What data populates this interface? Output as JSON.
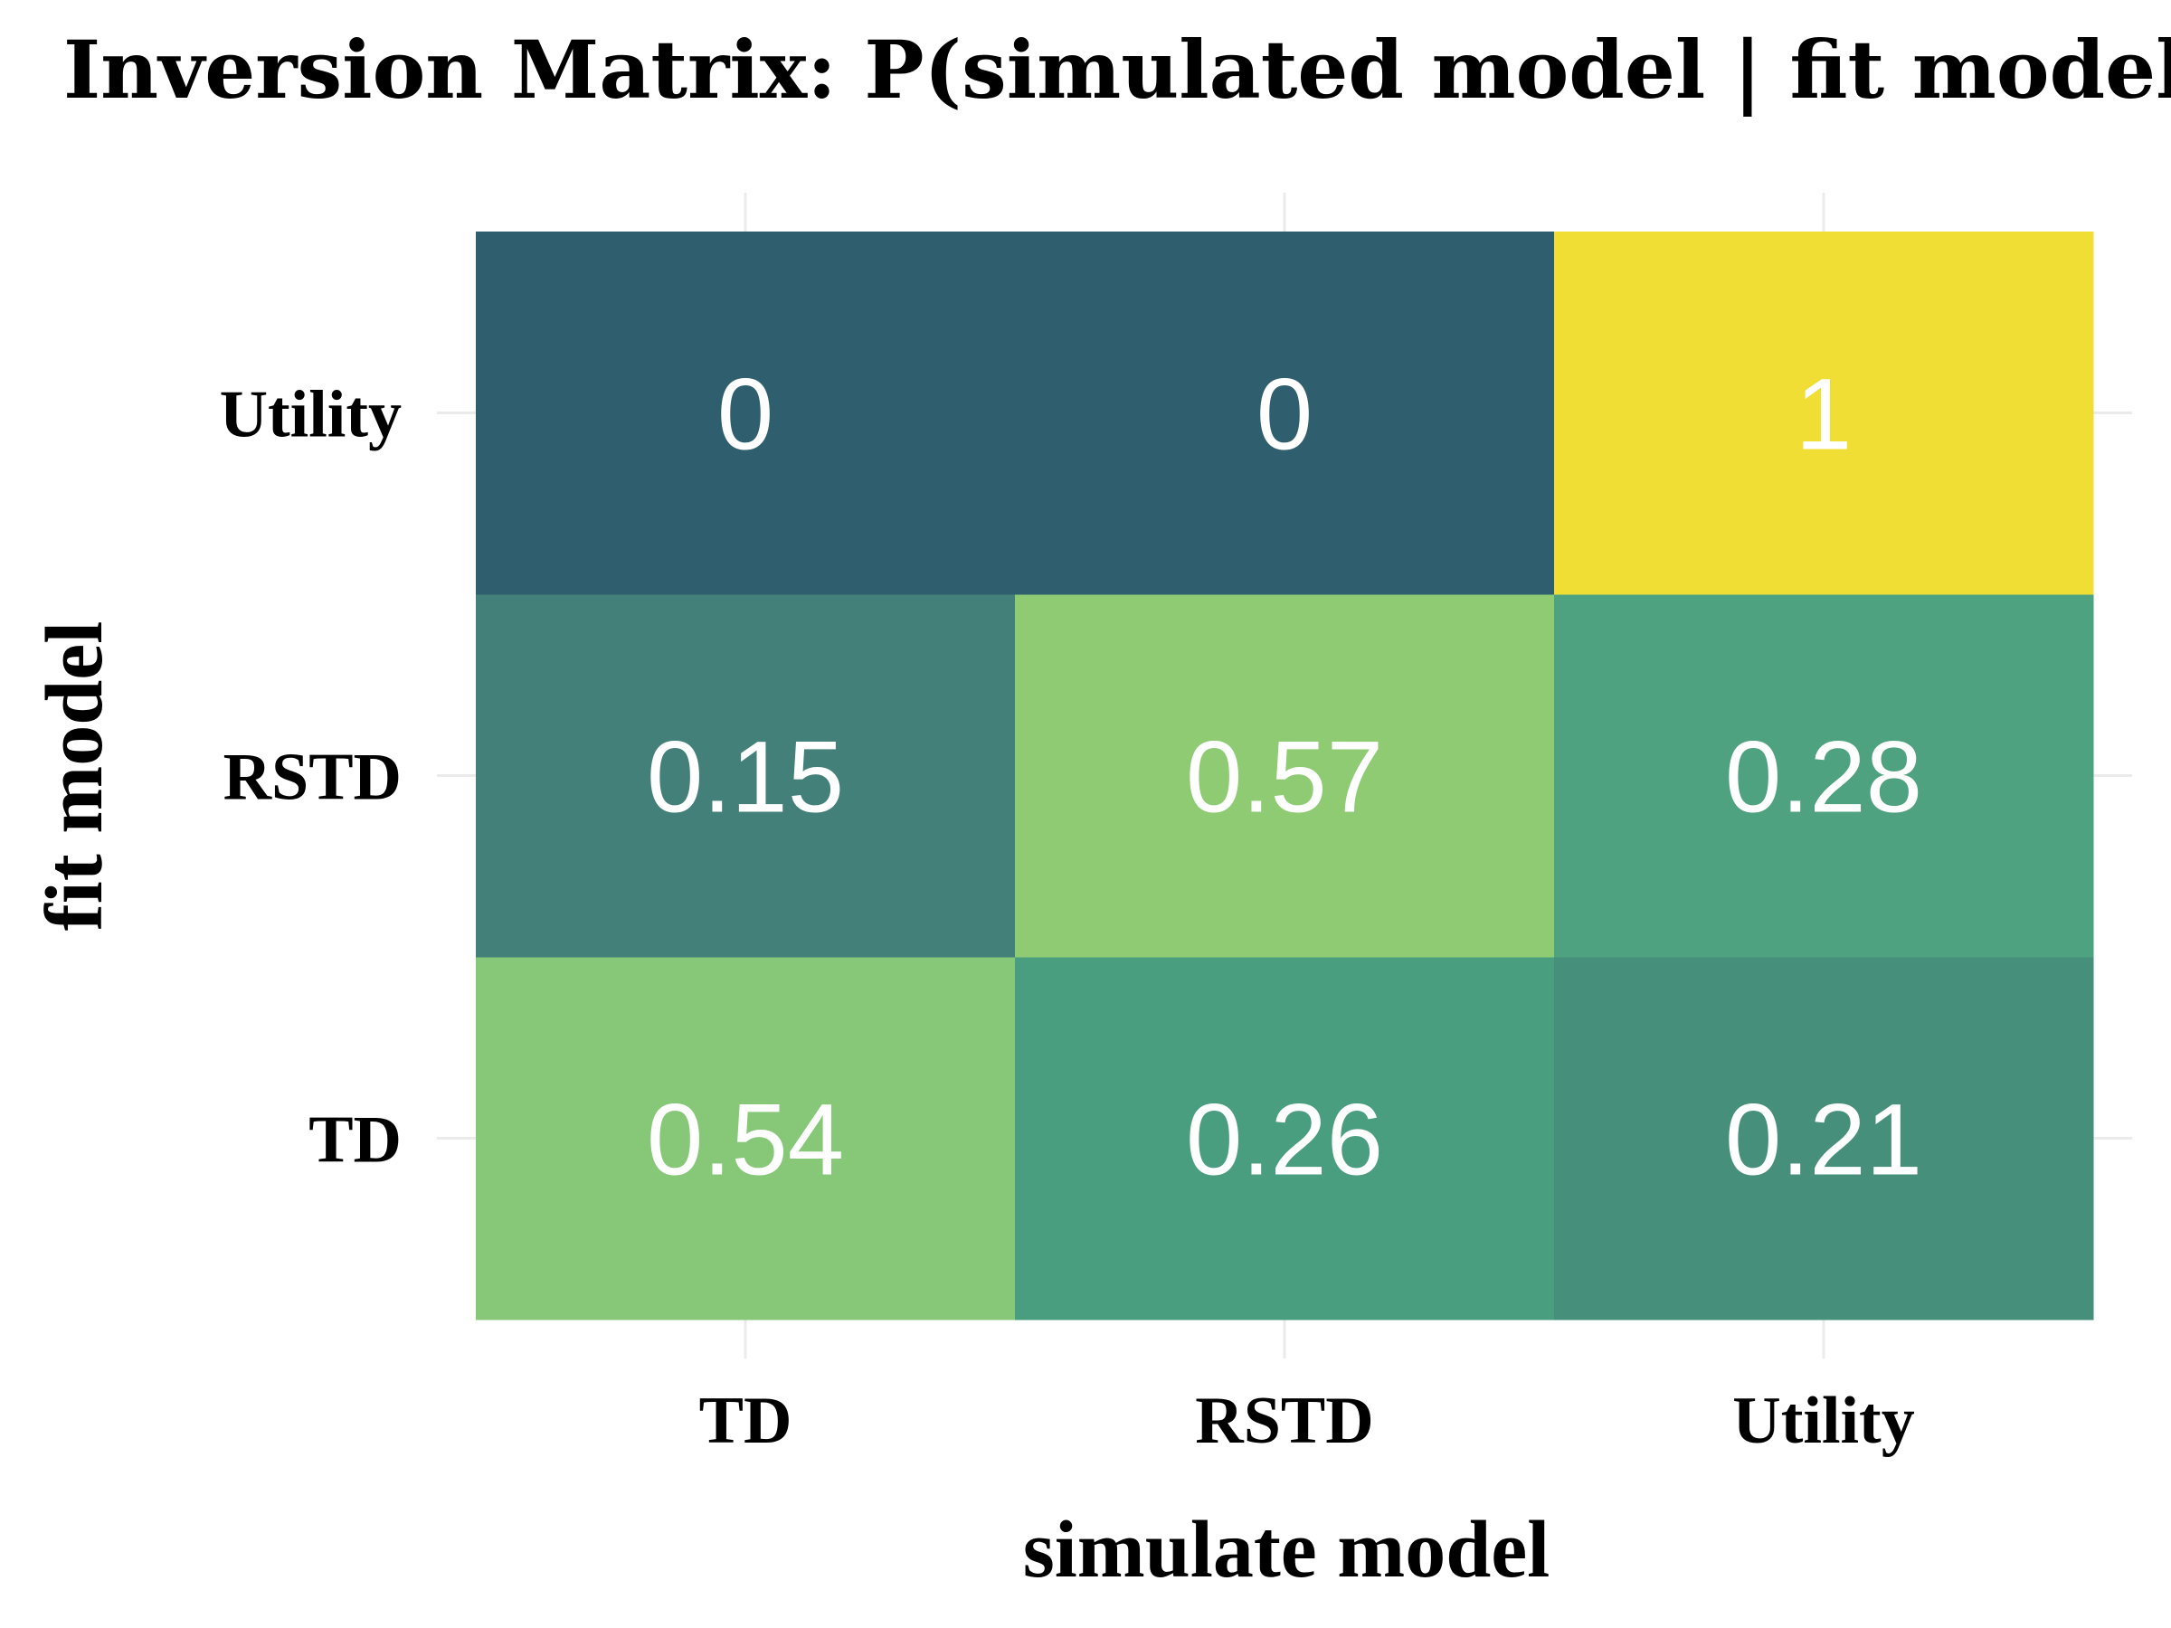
{
  "chart_data": {
    "type": "heatmap",
    "title": "Inversion Matrix: P(simulated model | fit model)",
    "xlabel": "simulate model",
    "ylabel": "fit model",
    "x_categories": [
      "TD",
      "RSTD",
      "Utility"
    ],
    "y_categories": [
      "TD",
      "RSTD",
      "Utility"
    ],
    "values": [
      [
        0.54,
        0.26,
        0.21
      ],
      [
        0.15,
        0.57,
        0.28
      ],
      [
        0,
        0,
        1
      ]
    ],
    "value_labels": [
      [
        "0.54",
        "0.26",
        "0.21"
      ],
      [
        "0.15",
        "0.57",
        "0.28"
      ],
      [
        "0",
        "0",
        "1"
      ]
    ],
    "colors": [
      [
        "#87c878",
        "#4a9e80",
        "#458f7b"
      ],
      [
        "#43807a",
        "#8ecb73",
        "#4ea27f"
      ],
      [
        "#2f5f6f",
        "#2f5f6f",
        "#f0de34"
      ]
    ],
    "value_range": [
      0,
      1
    ],
    "grid": true,
    "legend": "none"
  }
}
